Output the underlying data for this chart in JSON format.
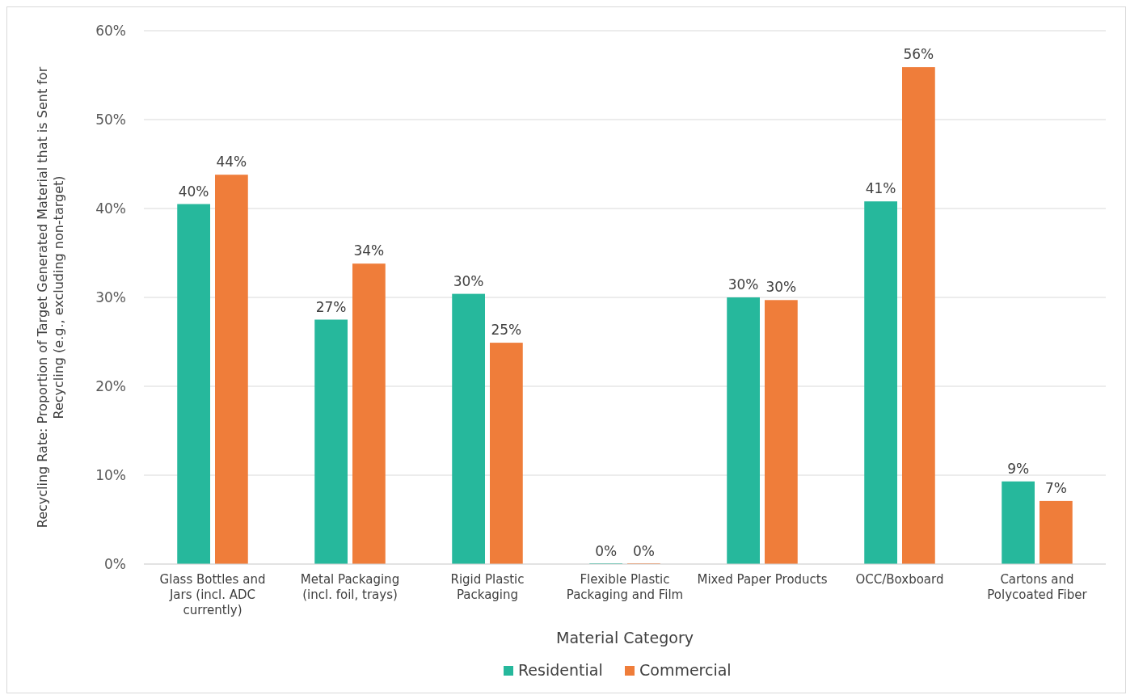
{
  "chart_data": {
    "type": "bar",
    "xlabel": "Material Category",
    "ylabel": "Recycling Rate: Proportion of  Target Generated Material that is Sent for Recycling (e.g., excluding non-target)",
    "categories": [
      "Glass Bottles and Jars (incl. ADC currently)",
      "Metal Packaging (incl. foil, trays)",
      "Rigid Plastic Packaging",
      "Flexible Plastic Packaging and Film",
      "Mixed Paper Products",
      "OCC/Boxboard",
      "Cartons and Polycoated Fiber"
    ],
    "series": [
      {
        "name": "Residential",
        "color": "#26b89c",
        "values": [
          40.5,
          27.5,
          30.4,
          0,
          30.0,
          40.8,
          9.3
        ],
        "value_labels": [
          "40%",
          "27%",
          "30%",
          "0%",
          "30%",
          "41%",
          "9%"
        ]
      },
      {
        "name": "Commercial",
        "color": "#ef7d3a",
        "values": [
          43.8,
          33.8,
          24.9,
          0,
          29.7,
          55.9,
          7.1
        ],
        "value_labels": [
          "44%",
          "34%",
          "25%",
          "0%",
          "30%",
          "56%",
          "7%"
        ]
      }
    ],
    "ylim": [
      0,
      60
    ],
    "yticks": [
      {
        "value": 0,
        "label": "0%"
      },
      {
        "value": 10,
        "label": "10%"
      },
      {
        "value": 20,
        "label": "20%"
      },
      {
        "value": 30,
        "label": "30%"
      },
      {
        "value": 40,
        "label": "40%"
      },
      {
        "value": 50,
        "label": "50%"
      },
      {
        "value": 60,
        "label": "60%"
      }
    ],
    "grid": "y",
    "legend": "bottom"
  }
}
